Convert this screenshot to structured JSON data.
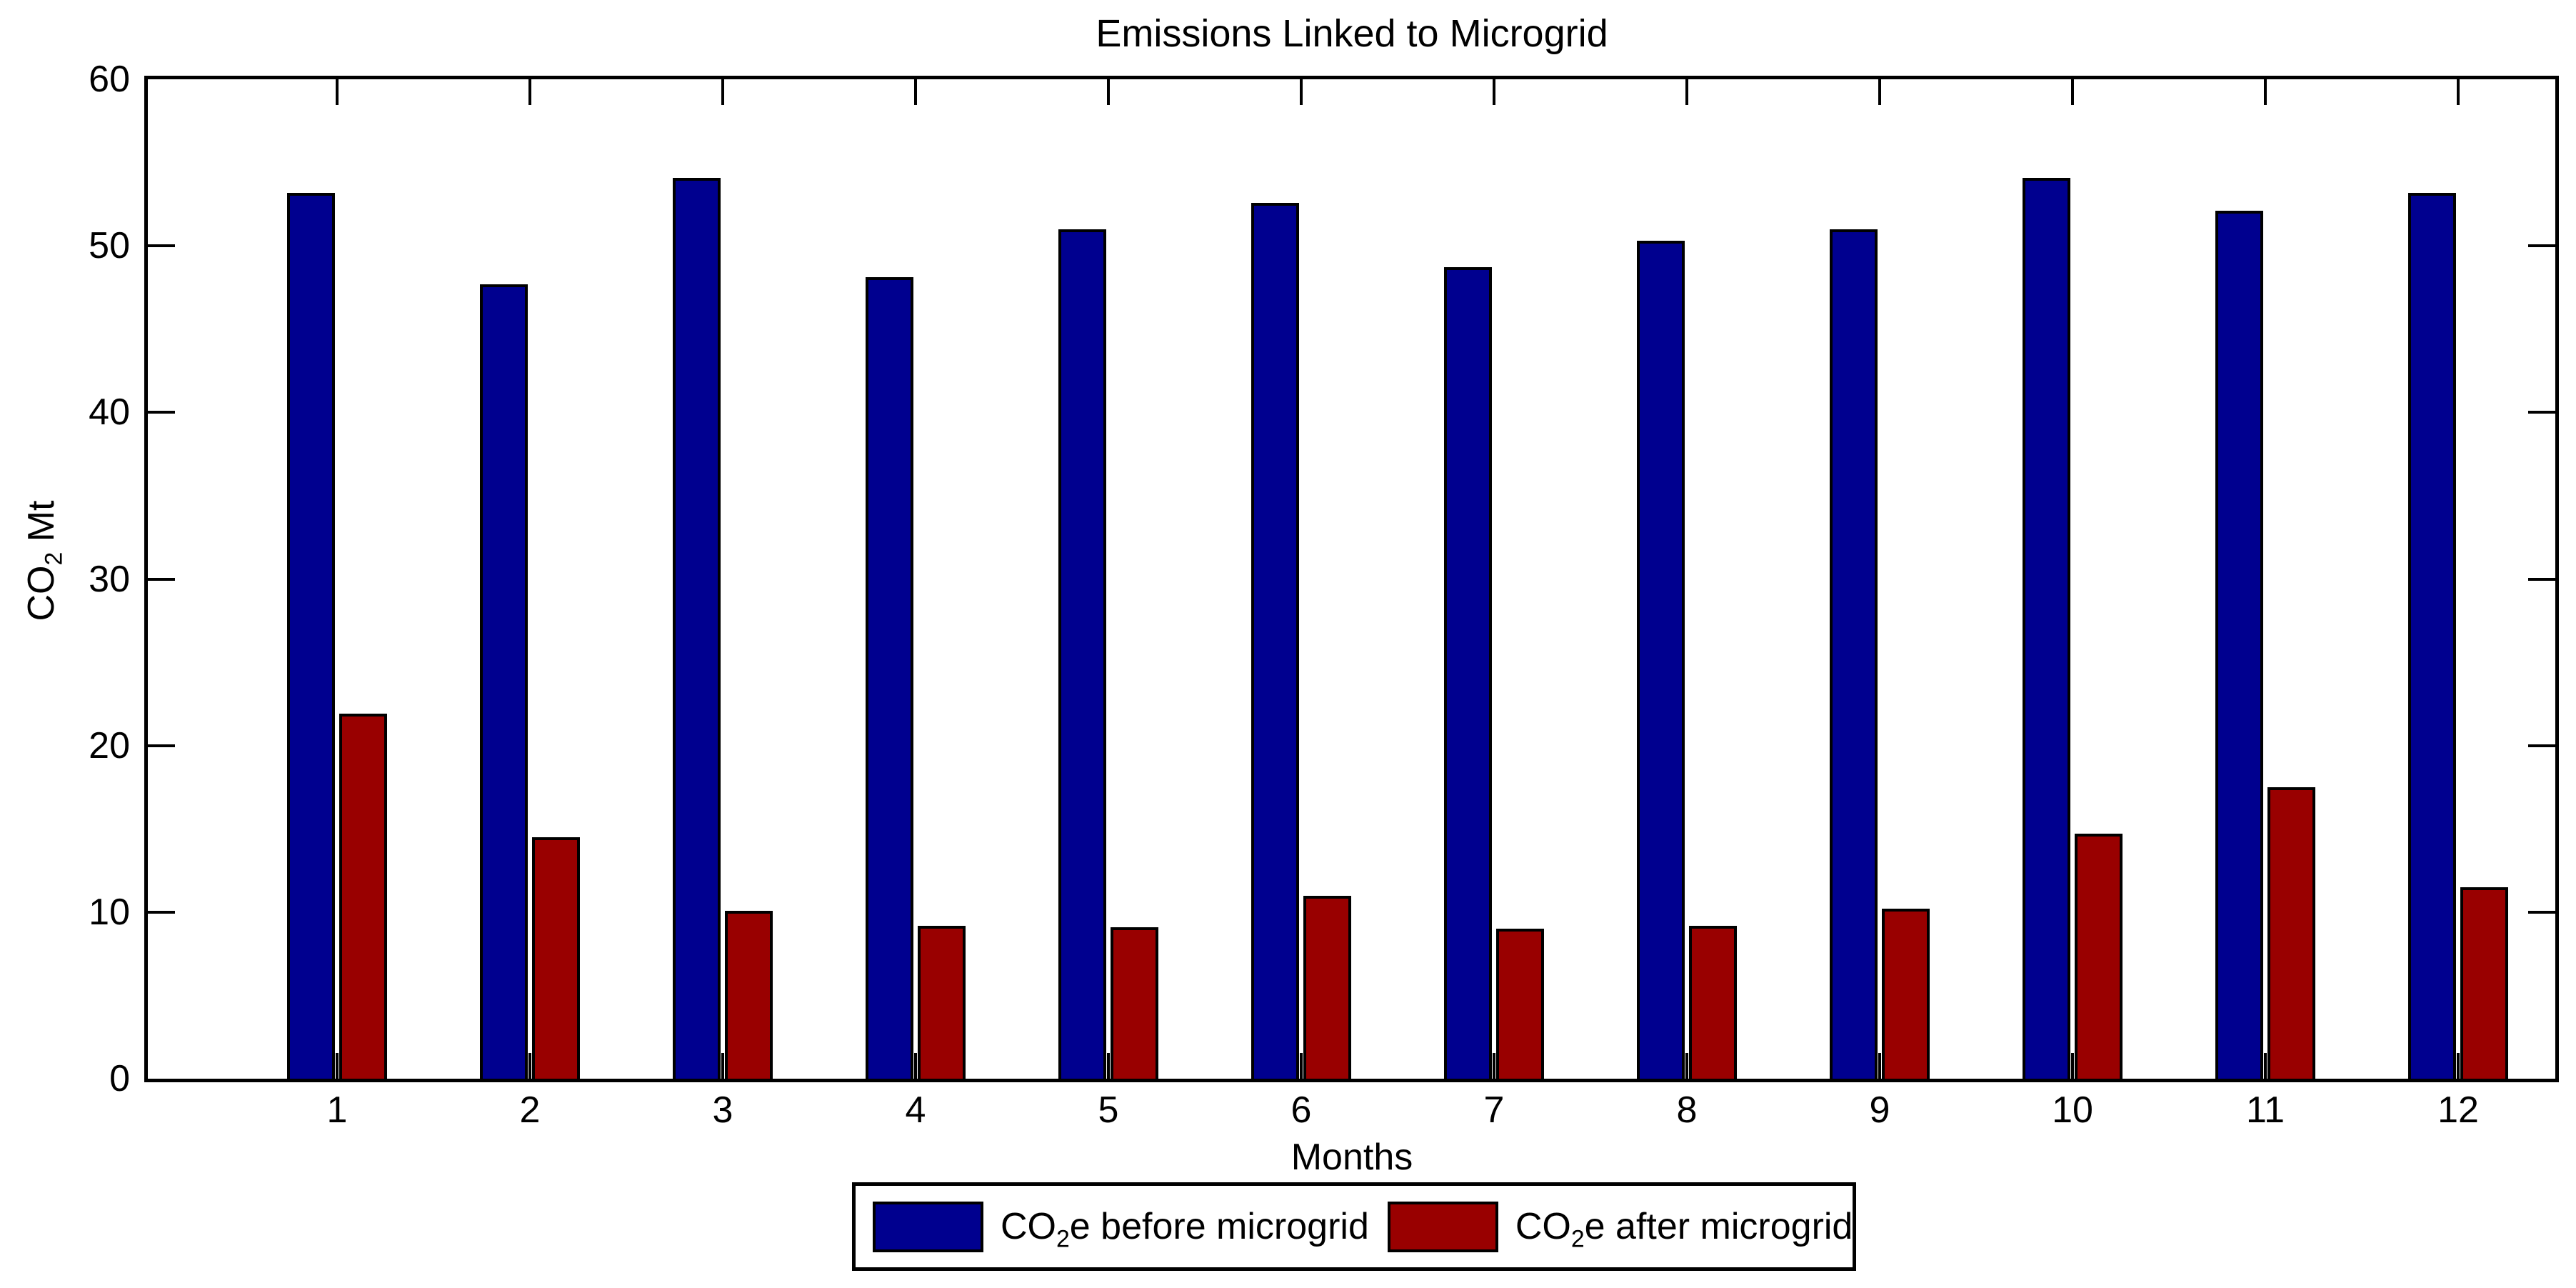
{
  "chart_data": {
    "type": "bar",
    "title": "Emissions Linked to Microgrid",
    "xlabel": "Months",
    "ylabel": "CO2 Mt",
    "ylabel_parts": {
      "prefix": "CO",
      "sub": "2",
      "suffix": " Mt"
    },
    "categories": [
      "1",
      "2",
      "3",
      "4",
      "5",
      "6",
      "7",
      "8",
      "9",
      "10",
      "11",
      "12"
    ],
    "series": [
      {
        "name": "CO2e before microgrid",
        "label_parts": {
          "prefix": "CO",
          "sub": "2",
          "suffix": "e before microgrid"
        },
        "color": "#00008F",
        "values": [
          53.2,
          47.7,
          54.1,
          48.1,
          51.0,
          52.6,
          48.7,
          50.3,
          51.0,
          54.1,
          52.1,
          53.2
        ]
      },
      {
        "name": "CO2e after microgrid",
        "label_parts": {
          "prefix": "CO",
          "sub": "2",
          "suffix": "e after microgrid"
        },
        "color": "#990000",
        "values": [
          21.9,
          14.5,
          10.1,
          9.2,
          9.1,
          11.0,
          9.0,
          9.2,
          10.2,
          14.7,
          17.5,
          11.5
        ]
      }
    ],
    "ylim": [
      0,
      60
    ],
    "yticks": [
      0,
      10,
      20,
      30,
      40,
      50,
      60
    ],
    "grid": false,
    "legend_position": "bottom",
    "bar_outline_color": "#000000",
    "background_color": "#FFFFFF"
  }
}
